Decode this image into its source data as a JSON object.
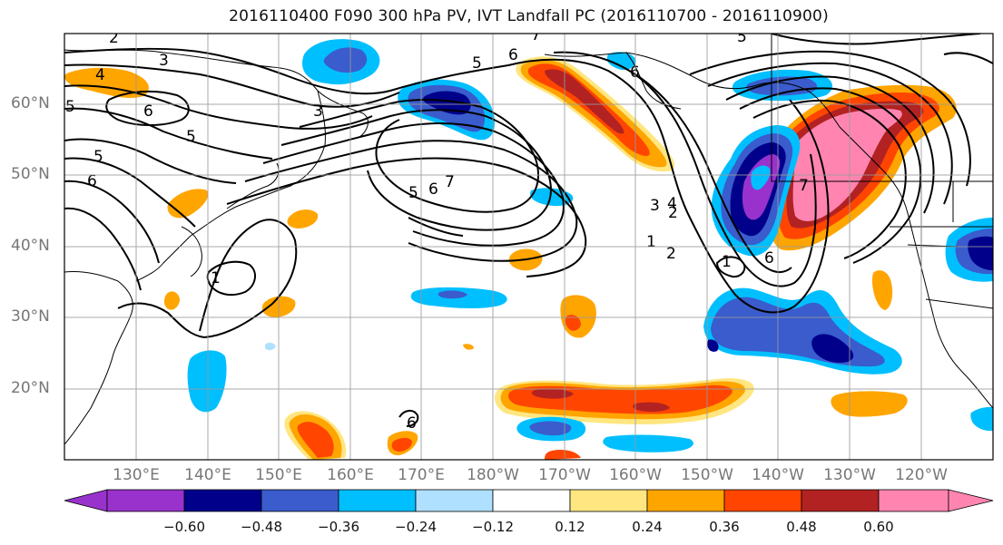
{
  "title": "2016110400 F090 300 hPa PV, IVT Landfall PC (2016110700 - 2016110900)",
  "lat_labels": [
    "60°N",
    "50°N",
    "40°N",
    "30°N",
    "20°N"
  ],
  "lon_labels": [
    "130°E",
    "140°E",
    "150°E",
    "160°E",
    "170°E",
    "180°W",
    "170°W",
    "160°W",
    "150°W",
    "140°W",
    "130°W",
    "120°W"
  ],
  "colorbar": {
    "labels": [
      "−0.60",
      "−0.48",
      "−0.36",
      "−0.24",
      "−0.12",
      "0.12",
      "0.24",
      "0.36",
      "0.48",
      "0.60"
    ],
    "colors": [
      "#9932cc",
      "#00008b",
      "#3a5ccc",
      "#00bfff",
      "#b0e0ff",
      "#ffffff",
      "#ffe680",
      "#ffa500",
      "#ff4500",
      "#b22222",
      "#ff85b0"
    ]
  },
  "contour_labels": [
    "2",
    "3",
    "4",
    "6",
    "3",
    "5",
    "5",
    "6",
    "5",
    "6",
    "5",
    "6",
    "7",
    "5",
    "6",
    "7",
    "2",
    "1",
    "2",
    "1",
    "4",
    "3",
    "6",
    "7",
    "1",
    "5",
    "6"
  ]
}
